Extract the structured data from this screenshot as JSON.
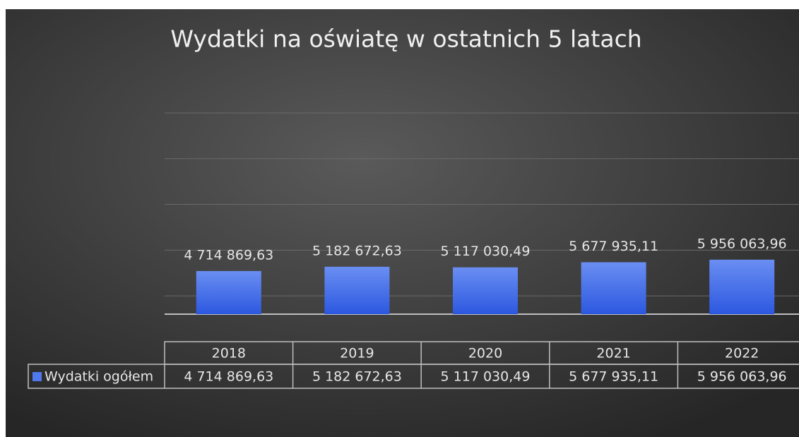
{
  "chart_data": {
    "type": "bar",
    "title": "Wydatki na oświatę w ostatnich 5 latach",
    "categories": [
      "2018",
      "2019",
      "2020",
      "2021",
      "2022"
    ],
    "series": [
      {
        "name": "Wydatki ogółem",
        "color": "#4f79ec",
        "values": [
          4714869.63,
          5182672.63,
          5117030.49,
          5677935.11,
          5956063.96
        ],
        "value_labels": [
          "4 714 869,63",
          "5 182 672,63",
          "5 117 030,49",
          "5 677 935,11",
          "5 956 063,96"
        ]
      }
    ],
    "ylim": [
      0,
      22000000
    ],
    "yticks": [
      2000000,
      7000000,
      12000000,
      17000000,
      22000000
    ],
    "grid": true
  }
}
